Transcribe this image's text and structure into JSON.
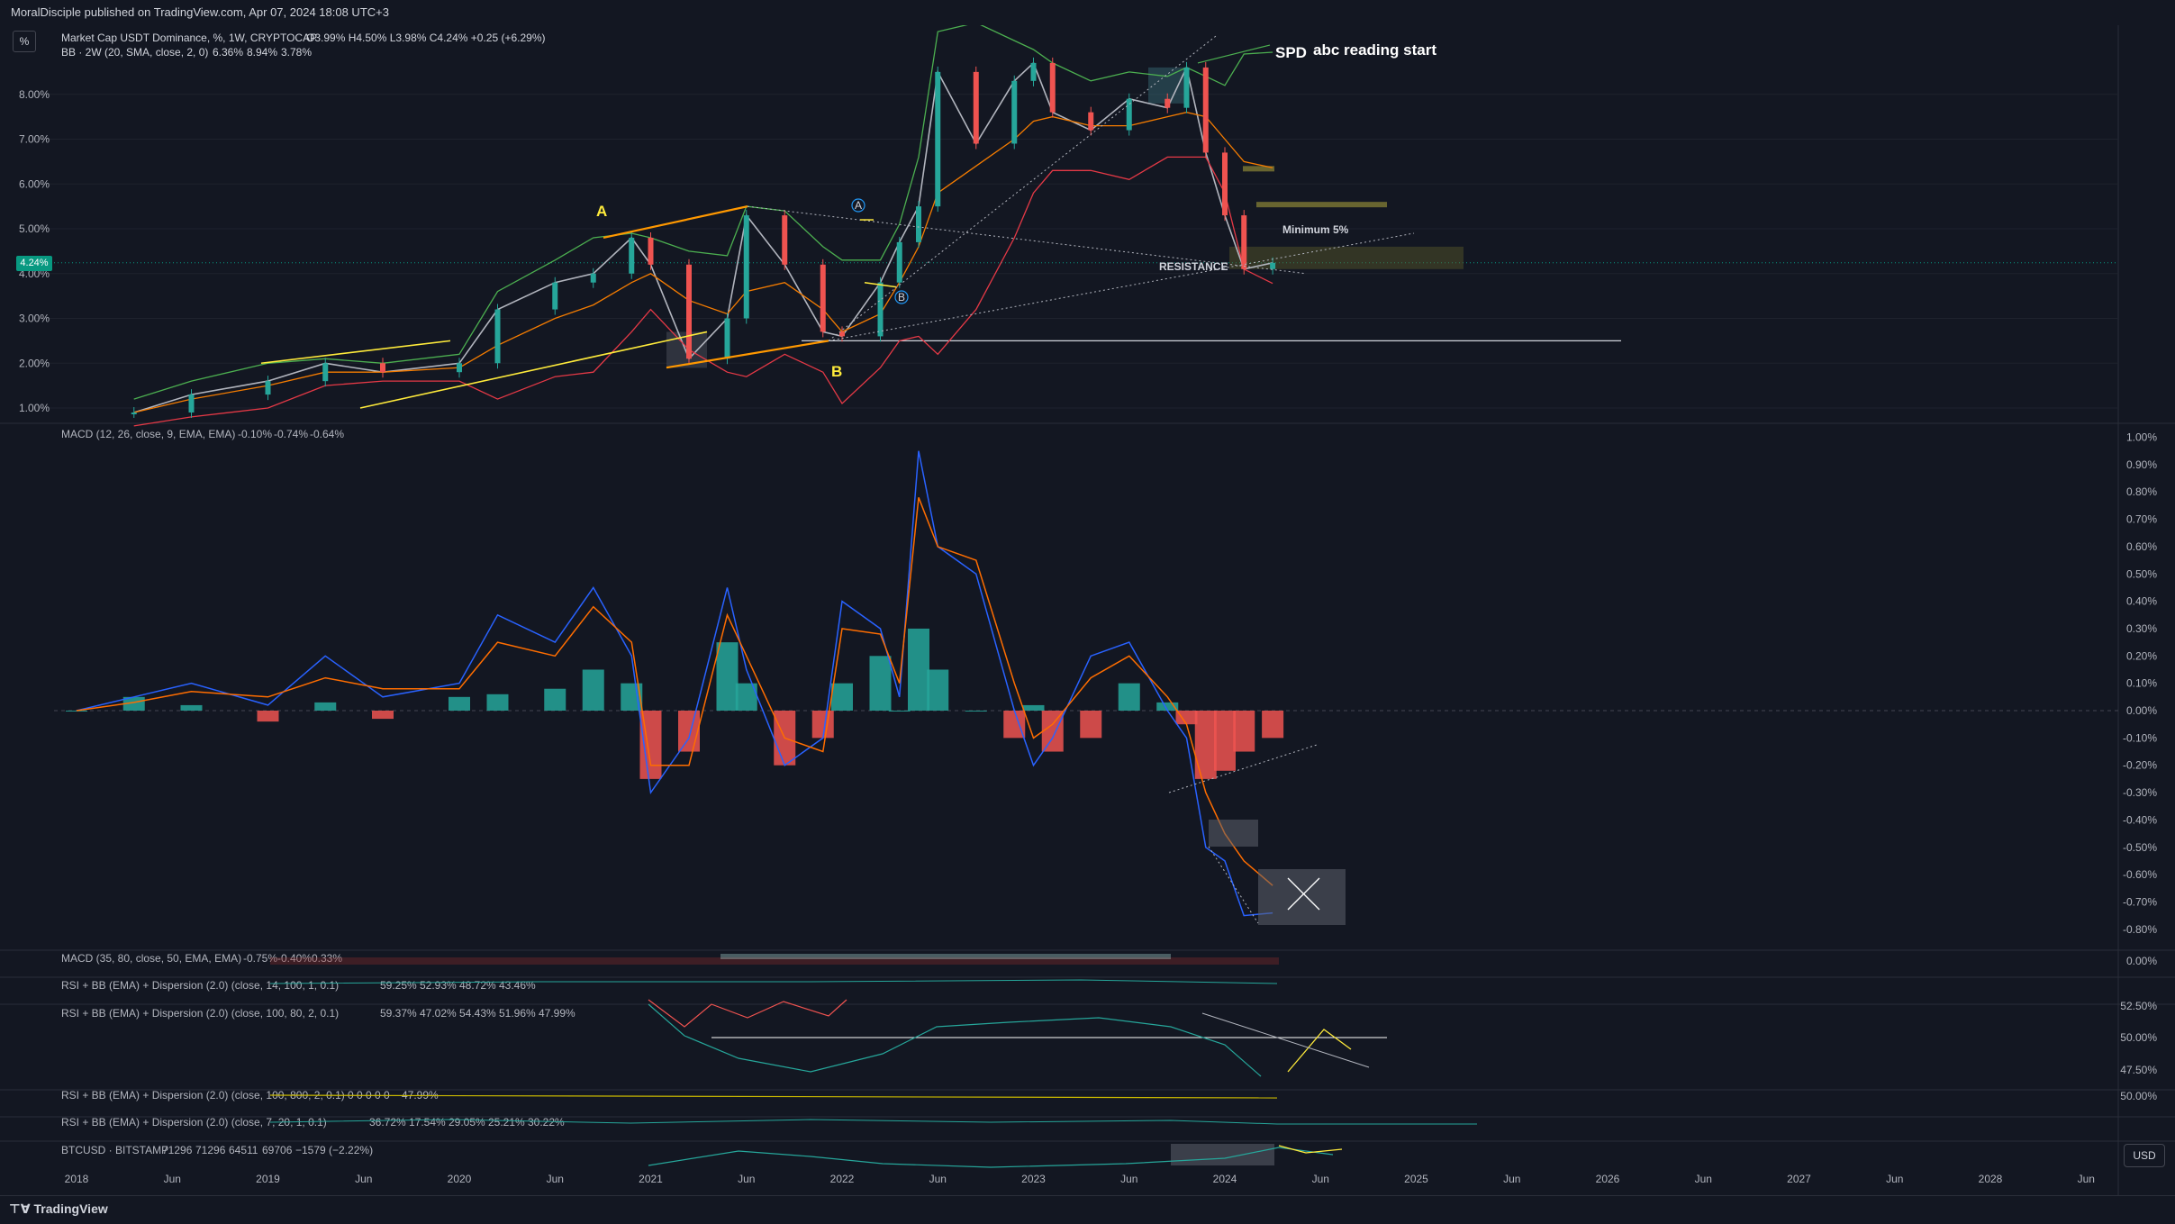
{
  "header": {
    "published": "MoralDisciple published on TradingView.com, Apr 07, 2024 18:08 UTC+3"
  },
  "unit_button": "%",
  "usd_button": "USD",
  "last_price_tag": "4.24%",
  "footer": {
    "brand": "TradingView"
  },
  "main_legend": {
    "symbol": "Market Cap USDT Dominance, %, 1W, CRYPTOCAP",
    "ohlc": "O3.99% H4.50% L3.98% C4.24% +0.25 (+6.29%)",
    "bb": "BB · 2W (20, SMA, close, 2, 0)",
    "bb_values": [
      "6.36%",
      "8.94%",
      "3.78%"
    ]
  },
  "annotations": {
    "A": "A",
    "B": "B",
    "SPD": "SPD",
    "abc": "abc reading start",
    "resistance": "RESISTANCE",
    "minimum": "Minimum 5%",
    "circleA": "A",
    "circleB": "B"
  },
  "indicators": {
    "macd": {
      "label": "MACD (12, 26, close, 9, EMA, EMA)",
      "values": [
        "-0.10%",
        "-0.74%",
        "-0.64%"
      ]
    },
    "macd2": {
      "label": "MACD (35, 80, close, 50, EMA, EMA)",
      "values": [
        "-0.75%",
        "-0.40%",
        "0.33%"
      ]
    },
    "rsi1": {
      "label": "RSI + BB (EMA) + Dispersion (2.0) (close, 14, 100, 1, 0.1)",
      "values": [
        "59.25%",
        "52.93%",
        "48.72%",
        "43.46%"
      ]
    },
    "rsi2": {
      "label": "RSI + BB (EMA) + Dispersion (2.0) (close, 100, 80, 2, 0.1)",
      "values": [
        "59.37%",
        "47.02%",
        "54.43%",
        "51.96%",
        "47.99%"
      ]
    },
    "rsi3": {
      "label": "RSI + BB (EMA) + Dispersion (2.0) (close, 100, 800, 2, 0.1)",
      "values": [
        "0",
        "0",
        "0",
        "0",
        "0",
        "47.99%"
      ]
    },
    "rsi4": {
      "label": "RSI + BB (EMA) + Dispersion (2.0) (close, 7, 20, 1, 0.1)",
      "values": [
        "36.72%",
        "17.54%",
        "29.05%",
        "25.21%",
        "30.22%"
      ]
    },
    "btc": {
      "label": "BTCUSD · BITSTAMP",
      "values": [
        "71296",
        "71296",
        "64511",
        "69706",
        "−1579 (−2.22%)"
      ]
    }
  },
  "chart_data": [
    {
      "type": "line",
      "title": "Market Cap USDT Dominance",
      "ylabel": "%",
      "ylim": [
        0.8,
        9.0
      ],
      "y_ticks": [
        "1.00%",
        "2.00%",
        "3.00%",
        "4.00%",
        "5.00%",
        "6.00%",
        "7.00%",
        "8.00%"
      ],
      "x_ticks": [
        "2018",
        "Jun",
        "2019",
        "Jun",
        "2020",
        "Jun",
        "2021",
        "Jun",
        "2022",
        "Jun",
        "2023",
        "Jun",
        "2024",
        "Jun",
        "2025",
        "Jun",
        "2026",
        "Jun",
        "2027",
        "Jun",
        "2028",
        "Jun"
      ],
      "x": [
        2018.3,
        2018.6,
        2019.0,
        2019.3,
        2019.6,
        2020.0,
        2020.2,
        2020.5,
        2020.7,
        2020.9,
        2021.0,
        2021.2,
        2021.4,
        2021.5,
        2021.7,
        2021.9,
        2022.0,
        2022.2,
        2022.3,
        2022.4,
        2022.5,
        2022.7,
        2022.9,
        2023.0,
        2023.1,
        2023.3,
        2023.5,
        2023.7,
        2023.8,
        2023.9,
        2024.0,
        2024.1,
        2024.25
      ],
      "series": [
        {
          "name": "close",
          "values": [
            0.9,
            1.3,
            1.6,
            2.0,
            1.8,
            2.0,
            3.2,
            3.8,
            4.0,
            4.8,
            4.2,
            2.1,
            3.0,
            5.3,
            4.2,
            2.7,
            2.6,
            3.8,
            4.7,
            5.5,
            8.5,
            6.9,
            8.3,
            8.7,
            7.6,
            7.2,
            7.9,
            7.7,
            8.6,
            6.7,
            5.3,
            4.1,
            4.24
          ]
        },
        {
          "name": "BB basis",
          "values": [
            0.9,
            1.2,
            1.5,
            1.8,
            1.8,
            1.9,
            2.4,
            3.0,
            3.3,
            3.8,
            4.0,
            3.4,
            3.1,
            3.6,
            3.8,
            3.2,
            2.7,
            3.1,
            3.8,
            4.6,
            5.8,
            6.4,
            7.0,
            7.4,
            7.5,
            7.3,
            7.3,
            7.5,
            7.6,
            7.5,
            7.0,
            6.5,
            6.36
          ]
        },
        {
          "name": "BB upper",
          "values": [
            1.2,
            1.6,
            2.0,
            2.1,
            2.0,
            2.2,
            3.6,
            4.3,
            4.8,
            4.9,
            4.8,
            4.5,
            4.4,
            5.5,
            5.4,
            4.6,
            4.3,
            4.3,
            5.1,
            6.6,
            9.4,
            9.6,
            9.2,
            9.0,
            8.7,
            8.3,
            8.5,
            8.4,
            8.6,
            8.4,
            8.2,
            8.9,
            8.94
          ]
        },
        {
          "name": "BB lower",
          "values": [
            0.6,
            0.8,
            1.0,
            1.5,
            1.6,
            1.6,
            1.2,
            1.7,
            1.8,
            2.7,
            3.2,
            2.3,
            1.8,
            1.7,
            2.2,
            1.8,
            1.1,
            1.9,
            2.5,
            2.6,
            2.2,
            3.2,
            4.8,
            5.8,
            6.3,
            6.3,
            6.1,
            6.6,
            6.6,
            6.6,
            5.8,
            4.1,
            3.78
          ]
        }
      ]
    },
    {
      "type": "bar",
      "title": "MACD (12, 26, close, 9, EMA, EMA)",
      "ylim": [
        -0.85,
        1.0
      ],
      "y_ticks": [
        "1.00%",
        "0.90%",
        "0.80%",
        "0.70%",
        "0.60%",
        "0.50%",
        "0.40%",
        "0.30%",
        "0.20%",
        "0.10%",
        "0.00%",
        "-0.10%",
        "-0.20%",
        "-0.30%",
        "-0.40%",
        "-0.50%",
        "-0.60%",
        "-0.70%",
        "-0.80%"
      ],
      "x": [
        2018.0,
        2018.3,
        2018.6,
        2019.0,
        2019.3,
        2019.6,
        2020.0,
        2020.2,
        2020.5,
        2020.7,
        2020.9,
        2021.0,
        2021.2,
        2021.4,
        2021.5,
        2021.7,
        2021.9,
        2022.0,
        2022.2,
        2022.3,
        2022.4,
        2022.5,
        2022.7,
        2022.9,
        2023.0,
        2023.1,
        2023.3,
        2023.5,
        2023.7,
        2023.8,
        2023.9,
        2024.0,
        2024.1,
        2024.25
      ],
      "series": [
        {
          "name": "histogram",
          "values": [
            0.0,
            0.05,
            0.02,
            -0.04,
            0.03,
            -0.03,
            0.05,
            0.06,
            0.08,
            0.15,
            0.1,
            -0.25,
            -0.15,
            0.25,
            0.1,
            -0.2,
            -0.1,
            0.1,
            0.2,
            0.0,
            0.3,
            0.15,
            0.0,
            -0.1,
            0.02,
            -0.15,
            -0.1,
            0.1,
            0.03,
            -0.05,
            -0.25,
            -0.22,
            -0.15,
            -0.1
          ]
        },
        {
          "name": "MACD",
          "values": [
            0.0,
            0.05,
            0.1,
            0.02,
            0.2,
            0.05,
            0.1,
            0.35,
            0.25,
            0.45,
            0.2,
            -0.3,
            -0.1,
            0.45,
            0.15,
            -0.2,
            -0.1,
            0.4,
            0.3,
            0.05,
            0.95,
            0.6,
            0.5,
            0.0,
            -0.2,
            -0.1,
            0.2,
            0.25,
            0.0,
            -0.1,
            -0.5,
            -0.55,
            -0.75,
            -0.74
          ]
        },
        {
          "name": "signal",
          "values": [
            0.0,
            0.03,
            0.07,
            0.05,
            0.12,
            0.08,
            0.08,
            0.25,
            0.2,
            0.38,
            0.25,
            -0.2,
            -0.2,
            0.35,
            0.2,
            -0.1,
            -0.15,
            0.3,
            0.28,
            0.1,
            0.78,
            0.6,
            0.55,
            0.1,
            -0.1,
            -0.05,
            0.12,
            0.2,
            0.05,
            -0.05,
            -0.3,
            -0.45,
            -0.55,
            -0.64
          ]
        }
      ]
    }
  ]
}
